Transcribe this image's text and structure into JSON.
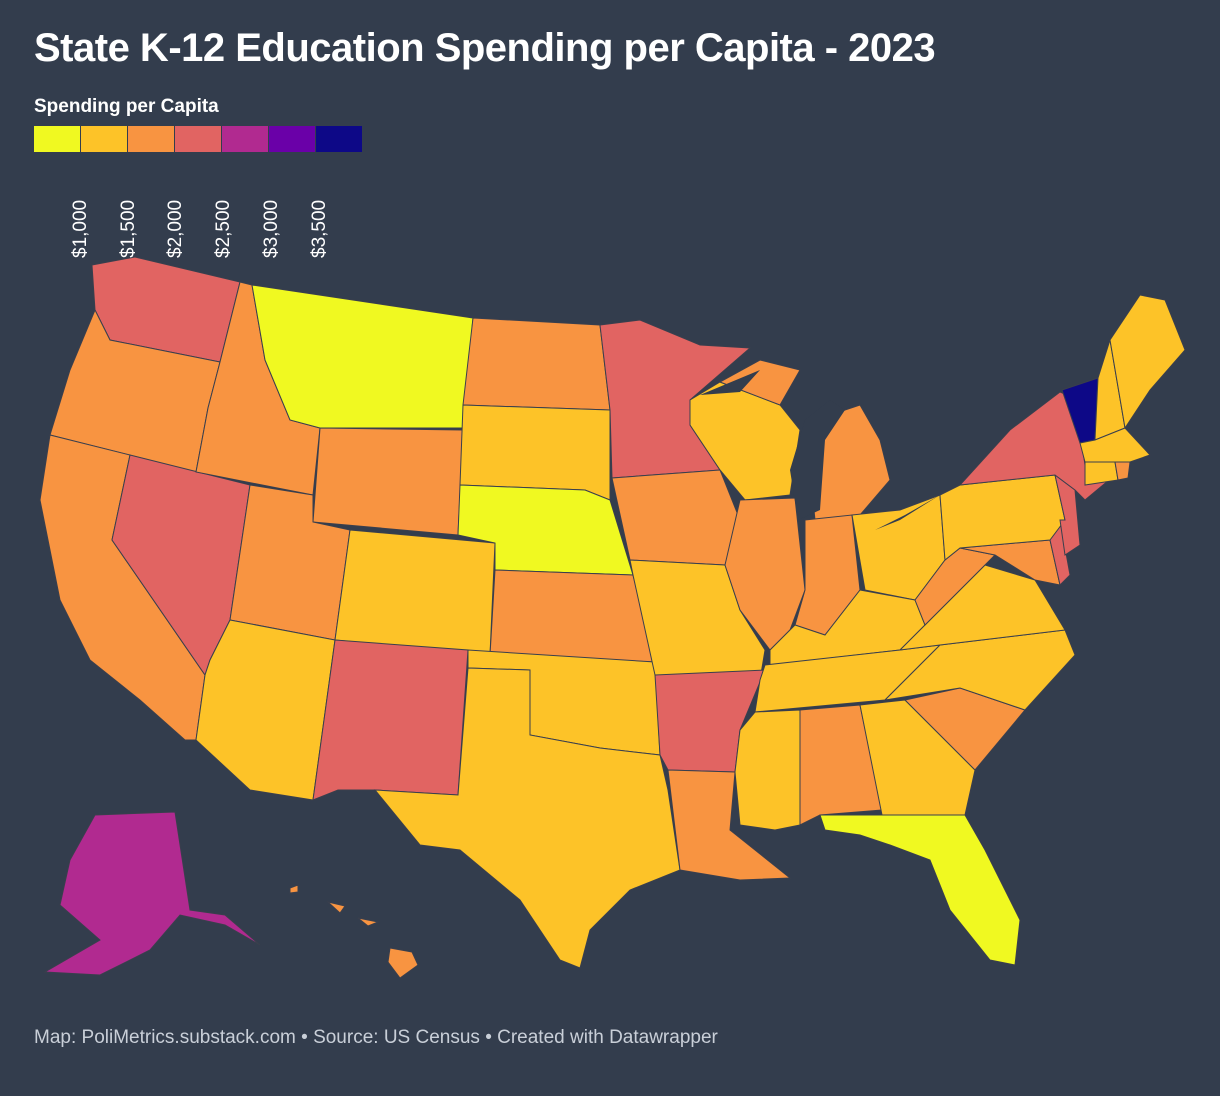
{
  "title": "State K-12 Education Spending per Capita - 2023",
  "legend": {
    "title": "Spending per Capita",
    "colors": [
      "#f0f921",
      "#fdc328",
      "#f89441",
      "#e16462",
      "#b12a90",
      "#6a00a8",
      "#0d0887"
    ],
    "ticks": [
      "$1,000",
      "$1,500",
      "$2,000",
      "$2,500",
      "$3,000",
      "$3,500"
    ]
  },
  "footer": "Map: PoliMetrics.substack.com • Source: US Census • Created with Datawrapper",
  "chart_data": {
    "type": "choropleth",
    "metric": "Spending per Capita",
    "bins": [
      "< $1,000",
      "$1,000–$1,500",
      "$1,500–$2,000",
      "$2,000–$2,500",
      "$2,500–$3,000",
      "$3,000–$3,500",
      "> $3,500"
    ],
    "states_by_bin": {
      "< $1,000": [
        "MT",
        "NE",
        "FL"
      ],
      "$1,000–$1,500": [
        "SD",
        "CO",
        "AZ",
        "TX",
        "OK",
        "MO",
        "MS",
        "GA",
        "TN",
        "KY",
        "NC",
        "VA",
        "OH",
        "WI",
        "PA",
        "ME",
        "NH",
        "MA",
        "CT"
      ],
      "$1,500–$2,000": [
        "OR",
        "CA",
        "ID",
        "WY",
        "UT",
        "ND",
        "KS",
        "IA",
        "IL",
        "IN",
        "MI",
        "LA",
        "AL",
        "SC",
        "WV",
        "MD",
        "HI",
        "RI"
      ],
      "$2,000–$2,500": [
        "WA",
        "NV",
        "NM",
        "MN",
        "AR",
        "NY",
        "NJ",
        "DE"
      ],
      "$2,500–$3,000": [
        "AK"
      ],
      "> $3,500": [
        "VT"
      ]
    }
  }
}
